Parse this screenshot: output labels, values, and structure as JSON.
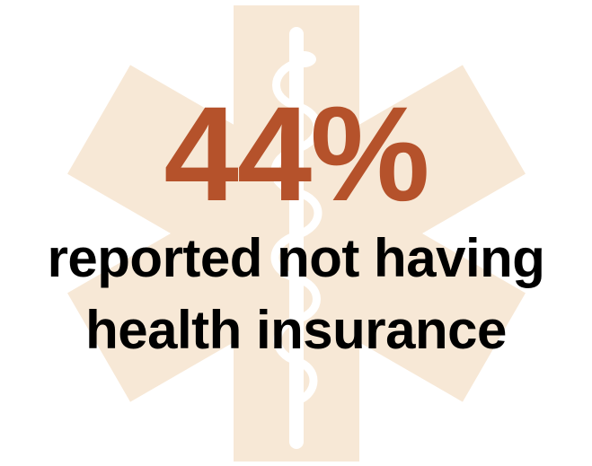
{
  "stat": {
    "value": "44%"
  },
  "caption": {
    "line1": "reported not having",
    "line2": "health insurance"
  },
  "icons": {
    "background": "star-of-life-icon",
    "staff": "rod-of-asclepius-icon"
  },
  "colors": {
    "accent": "#b5522b",
    "text": "#000000",
    "emblem": "#f7e8d6",
    "staff": "#ffffff",
    "background": "#ffffff"
  }
}
